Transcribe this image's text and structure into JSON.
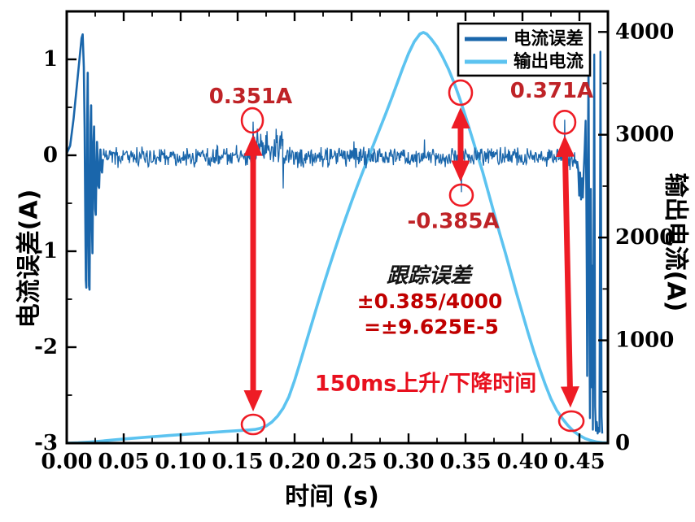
{
  "figure": {
    "background": "#ffffff",
    "frame_color": "#000000",
    "accent_red": "#ee1c25"
  },
  "chart_data": {
    "type": "line",
    "title": "",
    "xlabel": "时间 (s)",
    "ylabel_left": "电流误差(A)",
    "ylabel_right": "输出电流(A)",
    "x_range": [
      0,
      0.475
    ],
    "x_major_ticks": [
      "0.00",
      "0.05",
      "0.10",
      "0.15",
      "0.20",
      "0.25",
      "0.30",
      "0.35",
      "0.40",
      "0.45"
    ],
    "x_minor_step": 0.025,
    "yleft_range": [
      -3,
      1.5
    ],
    "yleft_major_ticks": [
      "1",
      "0",
      "-1",
      "-2",
      "-3"
    ],
    "yleft_minor_step": 0.5,
    "yright_range": [
      0,
      4200
    ],
    "yright_major_ticks": [
      "4000",
      "3000",
      "2000",
      "1000",
      "0"
    ],
    "yright_minor_step": 500,
    "grid": false,
    "legend_position": "top-right-inside",
    "legend": [
      {
        "label": "电流误差",
        "color": "#1a66ab"
      },
      {
        "label": "输出电流",
        "color": "#5cc3f0"
      }
    ],
    "series": [
      {
        "name": "电流误差",
        "axis": "left",
        "color": "#1a66ab",
        "type": "noisy-line",
        "start_transient": [
          [
            0.0,
            0.02
          ],
          [
            0.003,
            0.1
          ],
          [
            0.006,
            0.38
          ],
          [
            0.009,
            0.74
          ],
          [
            0.0115,
            1.04
          ],
          [
            0.013,
            1.22
          ],
          [
            0.014,
            1.26
          ],
          [
            0.015,
            0.92
          ],
          [
            0.0157,
            0.28
          ],
          [
            0.0163,
            -0.62
          ],
          [
            0.0168,
            -1.3
          ],
          [
            0.0172,
            -1.38
          ],
          [
            0.0176,
            -0.68
          ],
          [
            0.018,
            0.42
          ],
          [
            0.0184,
            0.86
          ],
          [
            0.0188,
            0.18
          ],
          [
            0.0192,
            -0.82
          ],
          [
            0.0196,
            -1.36
          ],
          [
            0.02,
            -1.4
          ],
          [
            0.0205,
            -0.58
          ],
          [
            0.021,
            0.32
          ],
          [
            0.0214,
            0.52
          ],
          [
            0.0218,
            -0.12
          ],
          [
            0.0222,
            -0.76
          ],
          [
            0.0226,
            -1.02
          ],
          [
            0.023,
            -0.44
          ],
          [
            0.0235,
            0.14
          ],
          [
            0.024,
            0.3
          ],
          [
            0.0245,
            -0.16
          ],
          [
            0.025,
            -0.56
          ],
          [
            0.0255,
            -0.62
          ],
          [
            0.026,
            -0.22
          ],
          [
            0.0266,
            0.14
          ],
          [
            0.0272,
            -0.06
          ],
          [
            0.0278,
            -0.32
          ],
          [
            0.0284,
            -0.34
          ],
          [
            0.029,
            -0.1
          ],
          [
            0.0296,
            0.06
          ],
          [
            0.0302,
            -0.12
          ],
          [
            0.031,
            -0.18
          ],
          [
            0.0318,
            -0.04
          ]
        ],
        "noise_bands": [
          {
            "t0": 0.032,
            "t1": 0.1625,
            "mean": -0.015,
            "amp": 0.085
          },
          {
            "t0": 0.1643,
            "t1": 0.1898,
            "mean": 0.115,
            "amp": 0.135
          },
          {
            "t0": 0.1902,
            "t1": 0.437,
            "mean": -0.022,
            "amp": 0.082
          },
          {
            "t0": 0.4372,
            "t1": 0.448,
            "mean": -0.05,
            "amp": 0.09
          }
        ],
        "spikes": [
          {
            "t": 0.1636,
            "v": 0.351
          },
          {
            "t": 0.19,
            "v": -0.345
          },
          {
            "t": 0.2521,
            "v": 0.145
          },
          {
            "t": 0.314,
            "v": 0.165
          },
          {
            "t": 0.3464,
            "v": -0.385
          },
          {
            "t": 0.4371,
            "v": 0.371
          }
        ],
        "end_transient": [
          [
            0.448,
            -0.06
          ],
          [
            0.449,
            -0.16
          ],
          [
            0.4498,
            -0.42
          ],
          [
            0.4506,
            -0.18
          ],
          [
            0.4514,
            -0.46
          ],
          [
            0.4522,
            -0.24
          ],
          [
            0.453,
            -0.44
          ],
          [
            0.4538,
            -0.16
          ],
          [
            0.4546,
            0.06
          ],
          [
            0.4554,
            0.36
          ],
          [
            0.456,
            -0.35
          ],
          [
            0.4564,
            -1.25
          ],
          [
            0.4568,
            -2.3
          ],
          [
            0.4572,
            -1.05
          ],
          [
            0.4576,
            0.32
          ],
          [
            0.458,
            1.02
          ],
          [
            0.4584,
            -0.45
          ],
          [
            0.4588,
            -1.85
          ],
          [
            0.4592,
            -2.74
          ],
          [
            0.4596,
            -1.45
          ],
          [
            0.46,
            -0.35
          ],
          [
            0.4606,
            -1.45
          ],
          [
            0.461,
            -2.42
          ],
          [
            0.4614,
            -1.15
          ],
          [
            0.4618,
            -2.86
          ],
          [
            0.4622,
            -1.95
          ],
          [
            0.4626,
            -0.45
          ],
          [
            0.463,
            1.05
          ],
          [
            0.4634,
            -0.85
          ],
          [
            0.4638,
            -2.62
          ],
          [
            0.4644,
            -2.87
          ],
          [
            0.4652,
            -2.78
          ],
          [
            0.466,
            -2.9
          ],
          [
            0.4668,
            -2.84
          ],
          [
            0.4676,
            -2.88
          ],
          [
            0.468,
            -1.0
          ],
          [
            0.4684,
            1.08
          ],
          [
            0.469,
            -0.55
          ],
          [
            0.4694,
            -2.72
          ],
          [
            0.47,
            -2.9
          ]
        ]
      },
      {
        "name": "输出电流",
        "axis": "right",
        "color": "#5cc3f0",
        "width": 3.6,
        "points": [
          [
            0.0,
            0
          ],
          [
            0.01,
            3
          ],
          [
            0.02,
            10
          ],
          [
            0.03,
            20
          ],
          [
            0.04,
            30
          ],
          [
            0.05,
            40
          ],
          [
            0.06,
            49
          ],
          [
            0.07,
            58
          ],
          [
            0.08,
            66
          ],
          [
            0.09,
            74
          ],
          [
            0.1,
            82
          ],
          [
            0.11,
            90
          ],
          [
            0.12,
            98
          ],
          [
            0.13,
            106
          ],
          [
            0.14,
            114
          ],
          [
            0.15,
            121
          ],
          [
            0.16,
            128
          ],
          [
            0.165,
            133
          ],
          [
            0.17,
            145
          ],
          [
            0.175,
            166
          ],
          [
            0.18,
            205
          ],
          [
            0.185,
            262
          ],
          [
            0.19,
            340
          ],
          [
            0.195,
            452
          ],
          [
            0.2,
            610
          ],
          [
            0.205,
            790
          ],
          [
            0.21,
            975
          ],
          [
            0.215,
            1160
          ],
          [
            0.22,
            1345
          ],
          [
            0.225,
            1525
          ],
          [
            0.23,
            1700
          ],
          [
            0.235,
            1870
          ],
          [
            0.24,
            2035
          ],
          [
            0.245,
            2195
          ],
          [
            0.25,
            2350
          ],
          [
            0.255,
            2500
          ],
          [
            0.26,
            2645
          ],
          [
            0.265,
            2785
          ],
          [
            0.27,
            2925
          ],
          [
            0.275,
            3065
          ],
          [
            0.28,
            3205
          ],
          [
            0.285,
            3350
          ],
          [
            0.29,
            3500
          ],
          [
            0.295,
            3650
          ],
          [
            0.3,
            3790
          ],
          [
            0.305,
            3905
          ],
          [
            0.31,
            3980
          ],
          [
            0.313,
            3995
          ],
          [
            0.316,
            3980
          ],
          [
            0.32,
            3930
          ],
          [
            0.325,
            3855
          ],
          [
            0.33,
            3755
          ],
          [
            0.335,
            3640
          ],
          [
            0.34,
            3505
          ],
          [
            0.345,
            3350
          ],
          [
            0.35,
            3180
          ],
          [
            0.355,
            3000
          ],
          [
            0.36,
            2820
          ],
          [
            0.365,
            2640
          ],
          [
            0.37,
            2440
          ],
          [
            0.375,
            2240
          ],
          [
            0.38,
            2040
          ],
          [
            0.385,
            1850
          ],
          [
            0.39,
            1650
          ],
          [
            0.395,
            1450
          ],
          [
            0.4,
            1260
          ],
          [
            0.405,
            1070
          ],
          [
            0.41,
            890
          ],
          [
            0.415,
            725
          ],
          [
            0.42,
            570
          ],
          [
            0.425,
            430
          ],
          [
            0.43,
            320
          ],
          [
            0.435,
            240
          ],
          [
            0.44,
            170
          ],
          [
            0.445,
            115
          ],
          [
            0.45,
            75
          ],
          [
            0.455,
            45
          ],
          [
            0.46,
            25
          ],
          [
            0.465,
            12
          ],
          [
            0.47,
            5
          ],
          [
            0.475,
            2
          ]
        ]
      }
    ],
    "annotations": {
      "circles": [
        {
          "t": 0.1629,
          "v": 0.364,
          "rx": 13,
          "ry": 15
        },
        {
          "t": 0.1636,
          "v": -2.805,
          "rx": 14,
          "ry": 12
        },
        {
          "t": 0.3457,
          "v": 0.653,
          "rx": 14,
          "ry": 15
        },
        {
          "t": 0.3464,
          "v": -0.415,
          "rx": 14,
          "ry": 13
        },
        {
          "t": 0.4371,
          "v": 0.345,
          "rx": 13,
          "ry": 14
        },
        {
          "t": 0.4429,
          "v": -2.771,
          "rx": 15,
          "ry": 12
        }
      ],
      "arrows": [
        {
          "t1": 0.1636,
          "v1": 0.215,
          "t2": 0.1636,
          "v2": -2.67
        },
        {
          "t1": 0.3457,
          "v1": 0.5,
          "t2": 0.3457,
          "v2": -0.275
        },
        {
          "t1": 0.4371,
          "v1": 0.205,
          "t2": 0.4421,
          "v2": -2.63
        }
      ],
      "labels": [
        {
          "text": "0.351A",
          "t": 0.1614,
          "v": 0.61,
          "color": "#bf2327",
          "size": 26,
          "bold": true,
          "italic": false
        },
        {
          "text": "-0.385A",
          "t": 0.3393,
          "v": -0.69,
          "color": "#bf2327",
          "size": 26,
          "bold": true,
          "italic": false
        },
        {
          "text": "0.371A",
          "t": 0.4257,
          "v": 0.67,
          "color": "#bf2327",
          "size": 26,
          "bold": true,
          "italic": false
        },
        {
          "text": "跟踪误差",
          "t": 0.3179,
          "v": -1.26,
          "color": "#141414",
          "size": 26,
          "bold": true,
          "italic": true
        },
        {
          "text": "±0.385/4000",
          "t": 0.3186,
          "v": -1.52,
          "color": "#c00000",
          "size": 25,
          "bold": true,
          "italic": false
        },
        {
          "text": "=±9.625E-5",
          "t": 0.32,
          "v": -1.79,
          "color": "#c00000",
          "size": 25,
          "bold": true,
          "italic": false
        },
        {
          "text": "150ms上升/下降时间",
          "t": 0.315,
          "v": -2.38,
          "color": "#e8101e",
          "size": 27,
          "bold": true,
          "italic": false
        }
      ]
    }
  }
}
